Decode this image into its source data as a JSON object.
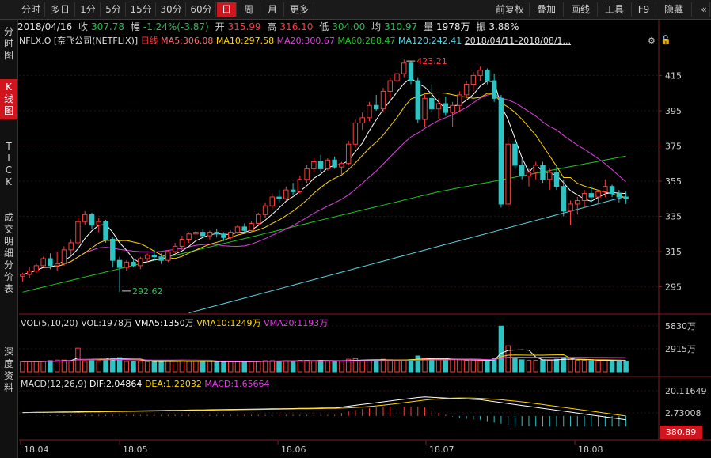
{
  "toolbar": {
    "left_tabs": [
      "分时",
      "多日",
      "1分",
      "5分",
      "15分",
      "30分",
      "60分",
      "日",
      "周",
      "月",
      "更多"
    ],
    "active_tab": "日",
    "right_tabs": [
      "前复权",
      "叠加",
      "画线",
      "工具",
      "F9",
      "隐藏"
    ]
  },
  "sidebar": {
    "items": [
      "分\n时\n图",
      "K\n线\n图",
      "T\nI\nC\nK",
      "成\n交\n明\n细",
      "分\n价\n表",
      "深\n度\n资\n料"
    ],
    "active_index": 1
  },
  "info_bar": {
    "date": "2018/04/16",
    "close_label": "收",
    "close": "307.78",
    "change_label": "幅",
    "change": "-1.24%(-3.87)",
    "open_label": "开",
    "open": "315.99",
    "high_label": "高",
    "high": "316.10",
    "low_label": "低",
    "low": "304.00",
    "avg_label": "均",
    "avg": "310.97",
    "volume_label": "量",
    "volume": "1978万",
    "amp_label": "振",
    "amp": "3.88%"
  },
  "legend": {
    "symbol": "NFLX.O [奈飞公司(NETFLIX)]",
    "period": "日线",
    "ma5": "MA5:306.08",
    "ma10": "MA10:297.58",
    "ma20": "MA20:300.67",
    "ma60": "MA60:288.47",
    "ma120": "MA120:242.41",
    "range": "2018/04/11-2018/08/1..."
  },
  "colors": {
    "up": "#ff3b3b",
    "down": "#2ec4c4",
    "ma5": "#ffffff",
    "ma10": "#ffd700",
    "ma20": "#e040e0",
    "ma60": "#22c722",
    "ma120": "#5cd6e6"
  },
  "price_axis": {
    "labels": [
      "415",
      "395",
      "375",
      "355",
      "335",
      "315",
      "295"
    ],
    "min": 280,
    "max": 430
  },
  "annotations": {
    "high": "423.21",
    "low": "292.62"
  },
  "volume_panel": {
    "legend": "VOL(5,10,20)",
    "vol": "VOL:1978万",
    "vma5": "VMA5:1350万",
    "vma10": "VMA10:1249万",
    "vma20": "VMA20:1193万",
    "axis_labels": [
      "5830万",
      "2915万"
    ],
    "max": 5830
  },
  "macd_panel": {
    "legend": "MACD(12,26,9)",
    "dif": "DIF:2.04864",
    "dea": "DEA:1.22032",
    "macd": "MACD:1.65664",
    "axis_labels": [
      "20.11649",
      "2.73008"
    ],
    "current": "380.89"
  },
  "date_axis": [
    "18.04",
    "18.05",
    "18.06",
    "18.07",
    "18.08"
  ],
  "chart_data": {
    "type": "candlestick",
    "ylim": [
      280,
      430
    ],
    "candles": [
      [
        301,
        303,
        298,
        302
      ],
      [
        302,
        306,
        300,
        304
      ],
      [
        304,
        308,
        303,
        307
      ],
      [
        307,
        312,
        306,
        311
      ],
      [
        311,
        314,
        305,
        307
      ],
      [
        307,
        315,
        304,
        308
      ],
      [
        308,
        318,
        307,
        316
      ],
      [
        316,
        322,
        313,
        320
      ],
      [
        320,
        334,
        319,
        332
      ],
      [
        332,
        338,
        330,
        336
      ],
      [
        336,
        337,
        328,
        330
      ],
      [
        330,
        334,
        326,
        332
      ],
      [
        332,
        333,
        320,
        322
      ],
      [
        322,
        323,
        306,
        310
      ],
      [
        310,
        312,
        292,
        306
      ],
      [
        306,
        310,
        304,
        309
      ],
      [
        309,
        311,
        306,
        307
      ],
      [
        307,
        312,
        305,
        311
      ],
      [
        311,
        314,
        309,
        313
      ],
      [
        313,
        316,
        310,
        312
      ],
      [
        312,
        314,
        308,
        310
      ],
      [
        310,
        316,
        309,
        315
      ],
      [
        315,
        320,
        314,
        318
      ],
      [
        318,
        324,
        316,
        322
      ],
      [
        322,
        326,
        320,
        325
      ],
      [
        325,
        328,
        322,
        326
      ],
      [
        326,
        328,
        323,
        324
      ],
      [
        324,
        327,
        322,
        326
      ],
      [
        326,
        328,
        323,
        325
      ],
      [
        325,
        326,
        321,
        323
      ],
      [
        323,
        327,
        322,
        326
      ],
      [
        326,
        330,
        325,
        329
      ],
      [
        329,
        331,
        326,
        327
      ],
      [
        327,
        332,
        326,
        331
      ],
      [
        331,
        337,
        330,
        336
      ],
      [
        336,
        343,
        334,
        341
      ],
      [
        341,
        348,
        339,
        346
      ],
      [
        346,
        350,
        343,
        345
      ],
      [
        345,
        352,
        344,
        350
      ],
      [
        350,
        354,
        347,
        349
      ],
      [
        349,
        358,
        348,
        356
      ],
      [
        356,
        364,
        354,
        362
      ],
      [
        362,
        368,
        360,
        366
      ],
      [
        366,
        370,
        360,
        362
      ],
      [
        362,
        368,
        361,
        367
      ],
      [
        367,
        369,
        362,
        363
      ],
      [
        363,
        366,
        359,
        365
      ],
      [
        365,
        378,
        364,
        376
      ],
      [
        376,
        390,
        374,
        388
      ],
      [
        388,
        394,
        384,
        391
      ],
      [
        391,
        400,
        389,
        398
      ],
      [
        398,
        404,
        395,
        396
      ],
      [
        396,
        408,
        394,
        406
      ],
      [
        406,
        414,
        402,
        412
      ],
      [
        412,
        418,
        408,
        416
      ],
      [
        416,
        424,
        414,
        422
      ],
      [
        422,
        423,
        410,
        412
      ],
      [
        412,
        414,
        388,
        390
      ],
      [
        390,
        404,
        386,
        402
      ],
      [
        402,
        410,
        394,
        396
      ],
      [
        396,
        402,
        390,
        399
      ],
      [
        399,
        403,
        392,
        394
      ],
      [
        394,
        400,
        386,
        398
      ],
      [
        398,
        406,
        394,
        404
      ],
      [
        404,
        412,
        402,
        410
      ],
      [
        410,
        417,
        406,
        415
      ],
      [
        415,
        420,
        412,
        418
      ],
      [
        418,
        419,
        410,
        412
      ],
      [
        412,
        416,
        400,
        402
      ],
      [
        402,
        404,
        340,
        342
      ],
      [
        342,
        380,
        340,
        376
      ],
      [
        376,
        378,
        362,
        364
      ],
      [
        364,
        368,
        356,
        358
      ],
      [
        358,
        362,
        352,
        360
      ],
      [
        360,
        366,
        356,
        364
      ],
      [
        364,
        366,
        354,
        356
      ],
      [
        356,
        362,
        350,
        360
      ],
      [
        360,
        364,
        350,
        352
      ],
      [
        352,
        356,
        335,
        338
      ],
      [
        338,
        344,
        330,
        342
      ],
      [
        342,
        346,
        336,
        344
      ],
      [
        344,
        350,
        340,
        348
      ],
      [
        348,
        352,
        343,
        346
      ],
      [
        346,
        350,
        342,
        349
      ],
      [
        349,
        356,
        346,
        352
      ],
      [
        352,
        353,
        346,
        348
      ],
      [
        348,
        350,
        343,
        346
      ],
      [
        346,
        349,
        342,
        345
      ]
    ]
  }
}
